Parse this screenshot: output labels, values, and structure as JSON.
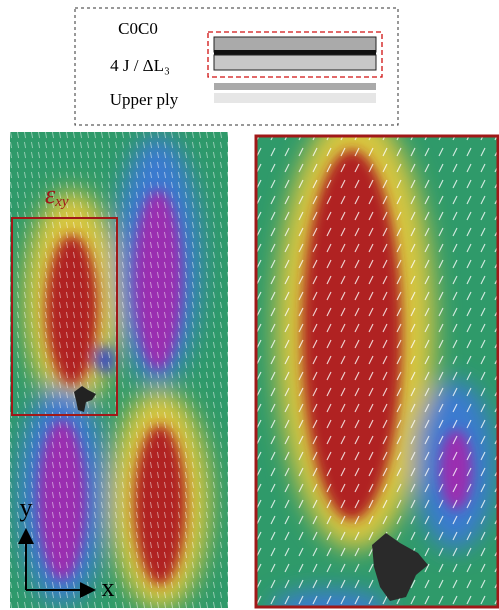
{
  "legend_box": {
    "lines": [
      "C0C0",
      "4 J / ΔL₃",
      "Upper ply"
    ]
  },
  "left_panel": {
    "field_symbol": "ε",
    "field_subscript": "xy",
    "axis_y": "y",
    "axis_x": "x"
  }
}
